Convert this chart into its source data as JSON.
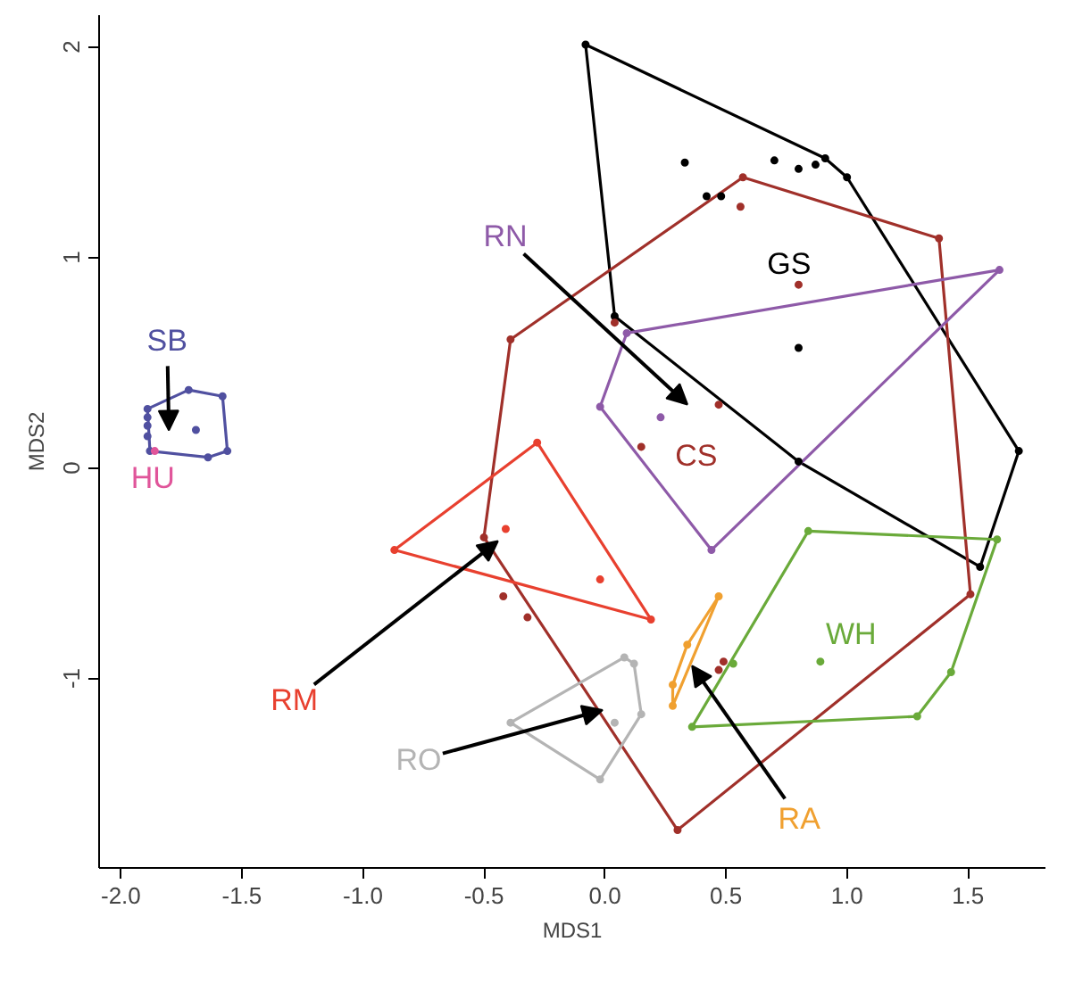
{
  "chart_data": {
    "type": "scatter",
    "xlabel": "MDS1",
    "ylabel": "MDS2",
    "xlim": [
      -2.09,
      1.82
    ],
    "ylim": [
      -1.9,
      2.15
    ],
    "xticks": [
      {
        "value": -2.0,
        "label": "-2.0"
      },
      {
        "value": -1.5,
        "label": "-1.5"
      },
      {
        "value": -1.0,
        "label": "-1.0"
      },
      {
        "value": -0.5,
        "label": "-0.5"
      },
      {
        "value": 0.0,
        "label": "0.0"
      },
      {
        "value": 0.5,
        "label": "0.5"
      },
      {
        "value": 1.0,
        "label": "1.0"
      },
      {
        "value": 1.5,
        "label": "1.5"
      }
    ],
    "yticks": [
      -1,
      0,
      1,
      2
    ],
    "grid": false,
    "marker": "circle",
    "series": [
      {
        "type": "line",
        "marker": "none",
        "color": "#000000",
        "x": [
          -0.08,
          0.91,
          1.0,
          1.71
        ],
        "values": [
          2.01,
          1.47,
          1.38,
          0.08
        ]
      },
      {
        "type": "line",
        "marker": "none",
        "color": "#000000",
        "x": [
          -0.08,
          0.04,
          0.8,
          1.55,
          1.71
        ],
        "values": [
          2.01,
          0.72,
          0.03,
          -0.47,
          0.08
        ]
      },
      {
        "type": "line",
        "marker": "none",
        "color": "#a0302a",
        "x": [
          -0.5,
          -0.39,
          0.57,
          1.38,
          1.51
        ],
        "values": [
          -0.33,
          0.61,
          1.38,
          1.09,
          -0.6
        ]
      },
      {
        "type": "line",
        "marker": "none",
        "color": "#a0302a",
        "x": [
          -0.5,
          0.3,
          1.51
        ],
        "values": [
          -0.33,
          -1.72,
          -0.6
        ]
      },
      {
        "type": "line",
        "marker": "none",
        "color": "#8e5aa8",
        "x": [
          -0.02,
          0.09,
          1.63
        ],
        "values": [
          0.29,
          0.64,
          0.94
        ]
      },
      {
        "type": "line",
        "marker": "none",
        "color": "#8e5aa8",
        "x": [
          -0.02,
          0.44,
          1.63
        ],
        "values": [
          0.29,
          -0.39,
          0.94
        ]
      },
      {
        "type": "line",
        "marker": "none",
        "color": "#e8402f",
        "x": [
          -0.87,
          -0.28,
          0.19
        ],
        "values": [
          -0.39,
          0.12,
          -0.72
        ]
      },
      {
        "type": "line",
        "marker": "none",
        "color": "#e8402f",
        "x": [
          -0.87,
          0.19
        ],
        "values": [
          -0.39,
          -0.72
        ]
      },
      {
        "type": "line",
        "marker": "none",
        "color": "#b4b4b4",
        "x": [
          -0.39,
          0.08,
          0.12,
          0.15
        ],
        "values": [
          -1.21,
          -0.9,
          -0.93,
          -1.17
        ]
      },
      {
        "type": "line",
        "marker": "none",
        "color": "#b4b4b4",
        "x": [
          -0.39,
          -0.02,
          0.15
        ],
        "values": [
          -1.21,
          -1.48,
          -1.17
        ]
      },
      {
        "type": "line",
        "marker": "none",
        "color": "#f0a030",
        "x": [
          0.28,
          0.34,
          0.47
        ],
        "values": [
          -1.03,
          -0.84,
          -0.61
        ]
      },
      {
        "type": "line",
        "marker": "none",
        "color": "#f0a030",
        "x": [
          0.28,
          0.28,
          0.47
        ],
        "values": [
          -1.03,
          -1.13,
          -0.61
        ]
      },
      {
        "type": "line",
        "marker": "none",
        "color": "#6aaa3a",
        "x": [
          0.36,
          0.84,
          1.62
        ],
        "values": [
          -1.23,
          -0.3,
          -0.34
        ]
      },
      {
        "type": "line",
        "marker": "none",
        "color": "#6aaa3a",
        "x": [
          0.36,
          1.29,
          1.43,
          1.62
        ],
        "values": [
          -1.23,
          -1.18,
          -0.97,
          -0.34
        ]
      },
      {
        "type": "line",
        "marker": "none",
        "color": "#5050a0",
        "x": [
          -1.89,
          -1.72,
          -1.58,
          -1.56
        ],
        "values": [
          0.28,
          0.37,
          0.34,
          0.08
        ]
      },
      {
        "type": "line",
        "marker": "none",
        "color": "#5050a0",
        "x": [
          -1.89,
          -1.88,
          -1.64,
          -1.56
        ],
        "values": [
          0.28,
          0.08,
          0.05,
          0.08
        ]
      },
      {
        "color": "#000000",
        "x": [
          -0.08,
          0.91,
          1.0,
          1.71,
          1.55,
          0.8,
          0.04,
          0.33,
          0.7,
          0.8,
          0.87,
          0.42,
          0.48,
          0.8
        ],
        "values": [
          2.01,
          1.47,
          1.38,
          0.08,
          -0.47,
          0.03,
          0.72,
          1.45,
          1.46,
          1.42,
          1.44,
          1.29,
          1.29,
          0.57
        ]
      },
      {
        "color": "#a0302a",
        "x": [
          -0.39,
          0.57,
          1.38,
          1.51,
          0.3,
          -0.5,
          0.56,
          0.8,
          0.04,
          0.47,
          0.15,
          -0.32,
          0.49,
          0.47,
          -0.42
        ],
        "values": [
          0.61,
          1.38,
          1.09,
          -0.6,
          -1.72,
          -0.33,
          1.24,
          0.87,
          0.69,
          0.3,
          0.1,
          -0.71,
          -0.92,
          -0.96,
          -0.61
        ]
      },
      {
        "color": "#8e5aa8",
        "x": [
          0.09,
          1.63,
          0.44,
          -0.02,
          0.23
        ],
        "values": [
          0.64,
          0.94,
          -0.39,
          0.29,
          0.24
        ]
      },
      {
        "color": "#e8402f",
        "x": [
          -0.87,
          -0.28,
          0.19,
          -0.41,
          -0.02
        ],
        "values": [
          -0.39,
          0.12,
          -0.72,
          -0.29,
          -0.53
        ]
      },
      {
        "color": "#b4b4b4",
        "x": [
          0.08,
          0.12,
          0.15,
          -0.02,
          -0.39,
          0.04
        ],
        "values": [
          -0.9,
          -0.93,
          -1.17,
          -1.48,
          -1.21,
          -1.21
        ]
      },
      {
        "color": "#f0a030",
        "x": [
          0.47,
          0.34,
          0.28,
          0.28
        ],
        "values": [
          -0.61,
          -0.84,
          -1.03,
          -1.13
        ]
      },
      {
        "color": "#6aaa3a",
        "x": [
          0.84,
          1.62,
          1.43,
          1.29,
          0.36,
          0.89,
          0.53
        ],
        "values": [
          -0.3,
          -0.34,
          -0.97,
          -1.18,
          -1.23,
          -0.92,
          -0.93
        ]
      },
      {
        "color": "#5050a0",
        "x": [
          -1.89,
          -1.72,
          -1.58,
          -1.56,
          -1.64,
          -1.88,
          -1.69,
          -1.89,
          -1.89,
          -1.89
        ],
        "values": [
          0.28,
          0.37,
          0.34,
          0.08,
          0.05,
          0.08,
          0.18,
          0.24,
          0.2,
          0.15
        ]
      },
      {
        "color": "#e0559a",
        "x": [
          -1.86
        ],
        "values": [
          0.08
        ]
      }
    ],
    "annotations": [
      "GS",
      "CS",
      "RN",
      "RM",
      {
        "text": "RO",
        "x": -0.01,
        "y": -1.15
      },
      {
        "text": "RA",
        "x": 0.36,
        "y": -0.94
      },
      "WH",
      "SB",
      "HU"
    ]
  }
}
